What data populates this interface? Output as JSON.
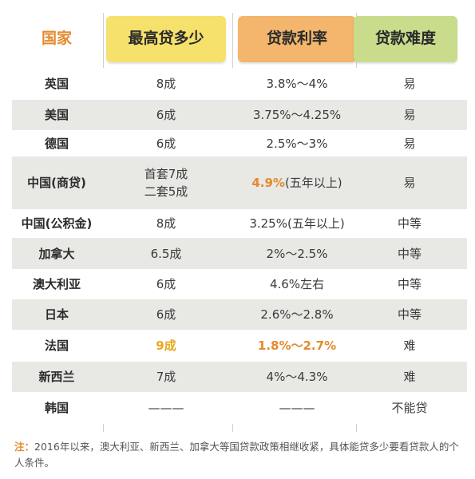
{
  "headers": {
    "country": "国家",
    "amount": "最高贷多少",
    "rate": "贷款利率",
    "difficulty": "贷款难度"
  },
  "rows": [
    {
      "country": "英国",
      "amount": "8成",
      "rate": "3.8%～4%",
      "difficulty": "易"
    },
    {
      "country": "美国",
      "amount": "6成",
      "rate": "3.75%～4.25%",
      "difficulty": "易"
    },
    {
      "country": "德国",
      "amount": "6成",
      "rate": "2.5%～3%",
      "difficulty": "易"
    },
    {
      "country": "中国(商贷)",
      "amount_line1": "首套7成",
      "amount_line2": "二套5成",
      "rate_highlight": "4.9%",
      "rate_suffix": "(五年以上)",
      "difficulty": "易"
    },
    {
      "country": "中国(公积金)",
      "amount": "8成",
      "rate": "3.25%(五年以上)",
      "difficulty": "中等"
    },
    {
      "country": "加拿大",
      "amount": "6.5成",
      "rate": "2%～2.5%",
      "difficulty": "中等"
    },
    {
      "country": "澳大利亚",
      "amount": "6成",
      "rate": "4.6%左右",
      "difficulty": "中等"
    },
    {
      "country": "日本",
      "amount": "6成",
      "rate": "2.6%～2.8%",
      "difficulty": "中等"
    },
    {
      "country": "法国",
      "amount": "9成",
      "rate": "1.8%～2.7%",
      "difficulty": "难"
    },
    {
      "country": "新西兰",
      "amount": "7成",
      "rate": "4%～4.3%",
      "difficulty": "难"
    },
    {
      "country": "韩国",
      "amount": "———",
      "rate": "———",
      "difficulty": "不能贷"
    }
  ],
  "note": {
    "label": "注：",
    "text": "2016年以来，澳大利亚、新西兰、加拿大等国贷款政策相继收紧，具体能贷多少要看贷款人的个人条件。"
  },
  "colors": {
    "header_amount": "#f6e16c",
    "header_rate": "#f3b66c",
    "header_difficulty": "#c8dc8c",
    "country_header": "#e4892e",
    "highlight_orange": "#e4892e",
    "highlight_yellow": "#e6a81c",
    "row_grey": "#e8e8e5"
  }
}
